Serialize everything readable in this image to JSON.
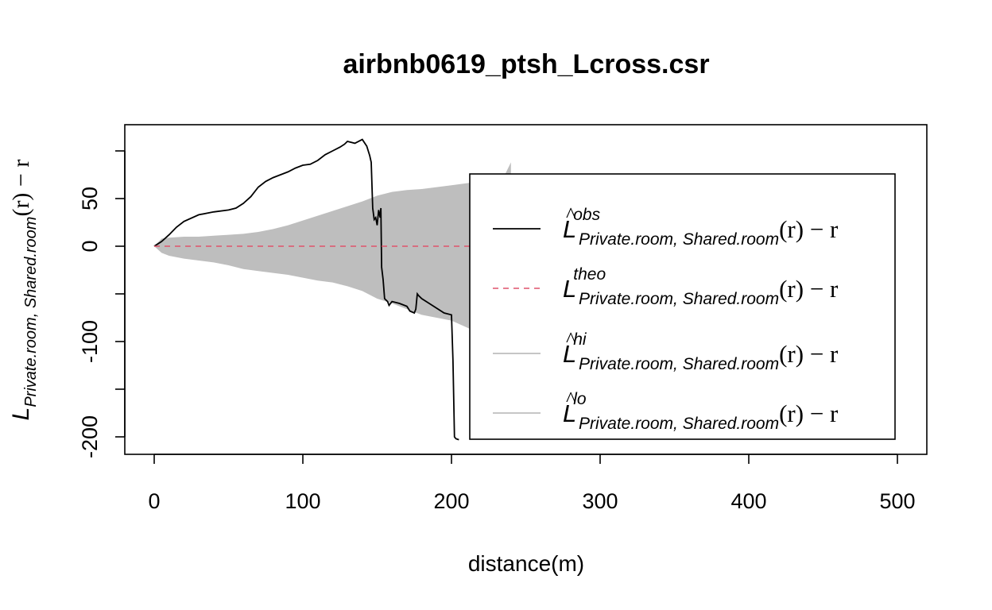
{
  "chart_data": {
    "type": "line",
    "title": "airbnb0619_ptsh_Lcross.csr",
    "xlabel": "distance(m)",
    "ylabel": {
      "main": "L",
      "subscript": "Private.room, Shared.room",
      "suffix": "(r) − r"
    },
    "xlim": [
      0,
      500
    ],
    "ylim": [
      -220,
      110
    ],
    "x_ticks": [
      "0",
      "100",
      "200",
      "300",
      "400",
      "500"
    ],
    "y_ticks": [
      "-200",
      "-100",
      "0",
      "50"
    ],
    "y_tick_values": [
      -200,
      -150,
      -100,
      -50,
      0,
      50,
      100
    ],
    "grid": false,
    "legend_position": "right",
    "envelope": {
      "color": "#bebebe",
      "x": [
        0,
        5,
        10,
        20,
        30,
        40,
        50,
        60,
        70,
        80,
        90,
        100,
        110,
        120,
        130,
        140,
        150,
        160,
        170,
        180,
        190,
        200,
        210,
        220,
        225,
        230,
        235,
        240
      ],
      "hi": [
        0,
        8,
        9,
        10,
        10,
        11,
        12,
        13,
        15,
        18,
        22,
        27,
        32,
        37,
        42,
        47,
        53,
        57,
        59,
        60,
        62,
        64,
        66,
        68,
        70,
        74,
        72,
        88
      ],
      "lo": [
        0,
        -7,
        -10,
        -13,
        -15,
        -17,
        -20,
        -24,
        -26,
        -28,
        -30,
        -33,
        -36,
        -38,
        -42,
        -47,
        -55,
        -60,
        -66,
        -72,
        -75,
        -78,
        -85,
        -92,
        -100,
        -145,
        -155,
        -155
      ]
    },
    "series": [
      {
        "name": "obs",
        "color": "#000000",
        "style": "solid",
        "x": [
          0,
          5,
          10,
          15,
          20,
          30,
          40,
          50,
          55,
          60,
          65,
          70,
          75,
          80,
          85,
          90,
          95,
          100,
          105,
          110,
          115,
          120,
          125,
          128,
          130,
          135,
          140,
          143,
          145,
          146,
          147,
          148,
          149,
          150,
          151,
          152,
          152.5,
          153,
          154,
          155,
          157,
          158,
          160,
          165,
          170,
          172,
          175,
          176,
          177,
          178,
          180,
          185,
          190,
          195,
          200,
          201,
          202,
          203,
          205
        ],
        "y": [
          0,
          5,
          12,
          20,
          26,
          33,
          36,
          38,
          40,
          45,
          52,
          62,
          68,
          72,
          75,
          78,
          82,
          85,
          86,
          90,
          96,
          100,
          104,
          107,
          110,
          108,
          112,
          105,
          95,
          88,
          40,
          28,
          30,
          22,
          38,
          30,
          40,
          -22,
          -35,
          -55,
          -58,
          -62,
          -58,
          -60,
          -63,
          -68,
          -70,
          -66,
          -50,
          -52,
          -55,
          -60,
          -65,
          -70,
          -72,
          -120,
          -200,
          -202,
          -203
        ]
      },
      {
        "name": "theo",
        "color": "#df536b",
        "style": "dashed",
        "x": [
          0,
          415
        ],
        "y": [
          0,
          0
        ]
      }
    ],
    "legend": [
      {
        "key": "obs",
        "symbol": "L",
        "hat": true,
        "superscript": "obs",
        "subscript": "Private.room, Shared.room",
        "suffix": "(r) − r",
        "color": "#000000",
        "style": "solid"
      },
      {
        "key": "theo",
        "symbol": "L",
        "hat": false,
        "superscript": "theo",
        "subscript": "Private.room, Shared.room",
        "suffix": "(r) − r",
        "color": "#df536b",
        "style": "dashed"
      },
      {
        "key": "hi",
        "symbol": "L",
        "hat": true,
        "superscript": "hi",
        "subscript": "Private.room, Shared.room",
        "suffix": "(r) − r",
        "color": "#bebebe",
        "style": "solid"
      },
      {
        "key": "lo",
        "symbol": "L",
        "hat": true,
        "superscript": "lo",
        "subscript": "Private.room, Shared.room",
        "suffix": "(r) − r",
        "color": "#bebebe",
        "style": "solid"
      }
    ]
  }
}
